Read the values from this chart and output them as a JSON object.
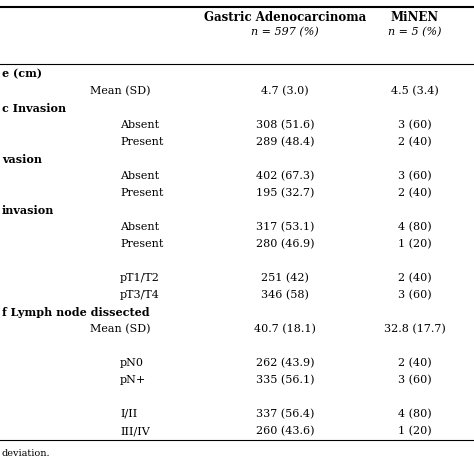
{
  "col1_header_line1": "Gastric Adenocarcinoma",
  "col1_header_line2": "n = 597 (%)",
  "col2_header_line1": "MiNEN",
  "col2_header_line2": "n = 5 (%)",
  "rows": [
    {
      "label": "e (cm)",
      "indent": 0,
      "bold": true,
      "col1": "",
      "col2": ""
    },
    {
      "label": "Mean (SD)",
      "indent": 1,
      "bold": false,
      "col1": "4.7 (3.0)",
      "col2": "4.5 (3.4)"
    },
    {
      "label": "c Invasion",
      "indent": 0,
      "bold": true,
      "col1": "",
      "col2": ""
    },
    {
      "label": "Absent",
      "indent": 2,
      "bold": false,
      "col1": "308 (51.6)",
      "col2": "3 (60)"
    },
    {
      "label": "Present",
      "indent": 2,
      "bold": false,
      "col1": "289 (48.4)",
      "col2": "2 (40)"
    },
    {
      "label": "vasion",
      "indent": 0,
      "bold": true,
      "col1": "",
      "col2": ""
    },
    {
      "label": "Absent",
      "indent": 2,
      "bold": false,
      "col1": "402 (67.3)",
      "col2": "3 (60)"
    },
    {
      "label": "Present",
      "indent": 2,
      "bold": false,
      "col1": "195 (32.7)",
      "col2": "2 (40)"
    },
    {
      "label": "invasion",
      "indent": 0,
      "bold": true,
      "col1": "",
      "col2": ""
    },
    {
      "label": "Absent",
      "indent": 2,
      "bold": false,
      "col1": "317 (53.1)",
      "col2": "4 (80)"
    },
    {
      "label": "Present",
      "indent": 2,
      "bold": false,
      "col1": "280 (46.9)",
      "col2": "1 (20)"
    },
    {
      "label": "",
      "indent": 0,
      "bold": false,
      "col1": "",
      "col2": ""
    },
    {
      "label": "pT1/T2",
      "indent": 2,
      "bold": false,
      "col1": "251 (42)",
      "col2": "2 (40)"
    },
    {
      "label": "pT3/T4",
      "indent": 2,
      "bold": false,
      "col1": "346 (58)",
      "col2": "3 (60)"
    },
    {
      "label": "f Lymph node dissected",
      "indent": 0,
      "bold": true,
      "col1": "",
      "col2": ""
    },
    {
      "label": "Mean (SD)",
      "indent": 1,
      "bold": false,
      "col1": "40.7 (18.1)",
      "col2": "32.8 (17.7)"
    },
    {
      "label": "",
      "indent": 0,
      "bold": false,
      "col1": "",
      "col2": ""
    },
    {
      "label": "pN0",
      "indent": 2,
      "bold": false,
      "col1": "262 (43.9)",
      "col2": "2 (40)"
    },
    {
      "label": "pN+",
      "indent": 2,
      "bold": false,
      "col1": "335 (56.1)",
      "col2": "3 (60)"
    },
    {
      "label": "",
      "indent": 0,
      "bold": false,
      "col1": "",
      "col2": ""
    },
    {
      "label": "I/II",
      "indent": 2,
      "bold": false,
      "col1": "337 (56.4)",
      "col2": "4 (80)"
    },
    {
      "label": "III/IV",
      "indent": 2,
      "bold": false,
      "col1": "260 (43.6)",
      "col2": "1 (20)"
    }
  ],
  "footnote": "deviation.",
  "bg_color": "#ffffff",
  "text_color": "#000000",
  "line_color": "#000000",
  "font_size": 8.0,
  "header_font_size": 8.5
}
